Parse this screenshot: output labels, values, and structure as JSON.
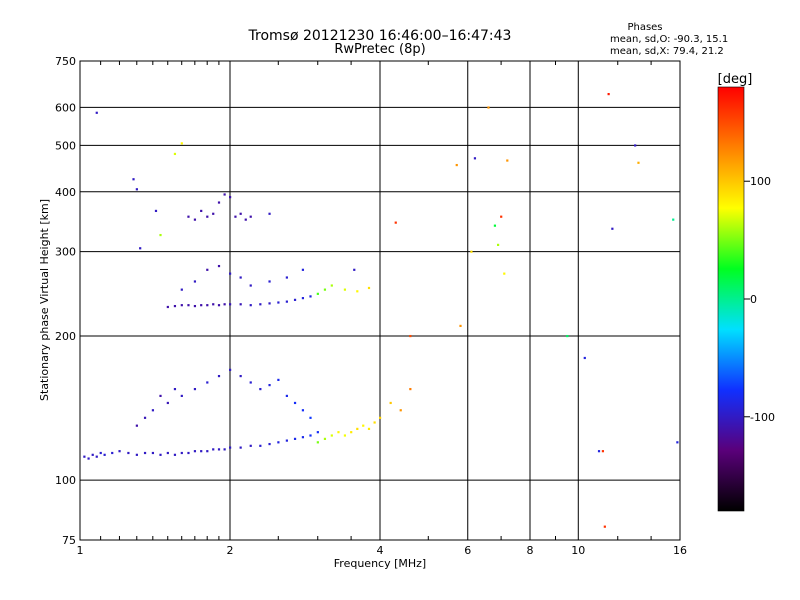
{
  "chart_data": {
    "type": "scatter",
    "title": "Tromsø 20121230 16:46:00–16:47:43",
    "subtitle": "RwPretec (8p)",
    "xlabel": "Frequency [MHz]",
    "ylabel": "Stationary phase Virtual Height [km]",
    "x_scale": "log",
    "y_scale": "log",
    "xlim": [
      1,
      16
    ],
    "ylim": [
      75,
      750
    ],
    "x_ticks": [
      "1",
      "2",
      "4",
      "6",
      "8",
      "10",
      "16"
    ],
    "x_tick_values": [
      1,
      2,
      4,
      6,
      8,
      10,
      16
    ],
    "y_ticks": [
      "75",
      "100",
      "200",
      "300",
      "400",
      "500",
      "600",
      "750"
    ],
    "y_tick_values": [
      75,
      100,
      200,
      300,
      400,
      500,
      600,
      750
    ],
    "x_grid": [
      1,
      2,
      4,
      6,
      8,
      10,
      16
    ],
    "y_grid": [
      100,
      200,
      300,
      400,
      500,
      600
    ],
    "grid": true,
    "stats": {
      "header": "Phases",
      "line_o": "mean, sd,O: -90.3, 15.1",
      "line_x": "mean, sd,X:  79.4, 21.2"
    },
    "colorbar": {
      "label": "[deg]",
      "range": [
        -180,
        180
      ],
      "ticks": [
        "100",
        "0",
        "-100"
      ],
      "tick_values": [
        100,
        0,
        -100
      ],
      "colors": [
        "#000000",
        "#5a007a",
        "#1030ff",
        "#00e0ff",
        "#00ff20",
        "#ffff00",
        "#ff8000",
        "#ff0000"
      ]
    },
    "series": [
      {
        "x": [
          1.02,
          1.04,
          1.06,
          1.08,
          1.1,
          1.12,
          1.16,
          1.2,
          1.25,
          1.3,
          1.35,
          1.4,
          1.45,
          1.5,
          1.55,
          1.6,
          1.65,
          1.7,
          1.75,
          1.8,
          1.85,
          1.9,
          1.95,
          2.0,
          2.1,
          2.2,
          2.3,
          2.4,
          2.5,
          2.6,
          2.7,
          2.8,
          2.9,
          3.0
        ],
        "y": [
          112,
          111,
          113,
          112,
          114,
          113,
          114,
          115,
          114,
          113,
          114,
          114,
          113,
          114,
          113,
          114,
          114,
          115,
          115,
          115,
          116,
          116,
          116,
          117,
          117,
          118,
          118,
          119,
          120,
          121,
          122,
          123,
          124,
          126
        ],
        "phase": [
          -100,
          -100,
          -100,
          -100,
          -95,
          -95,
          -95,
          -100,
          -100,
          -100,
          -100,
          -100,
          -100,
          -100,
          -100,
          -100,
          -100,
          -100,
          -100,
          -100,
          -100,
          -100,
          -100,
          -100,
          -100,
          -100,
          -95,
          -95,
          -90,
          -90,
          -85,
          -85,
          -80,
          -80
        ]
      },
      {
        "x": [
          1.3,
          1.35,
          1.4,
          1.45,
          1.5,
          1.55,
          1.6,
          1.7,
          1.8,
          1.9,
          2.0,
          2.1,
          2.2,
          2.3,
          2.4,
          2.5,
          2.6,
          2.7,
          2.8,
          2.9
        ],
        "y": [
          130,
          135,
          140,
          150,
          145,
          155,
          150,
          155,
          160,
          165,
          170,
          165,
          160,
          155,
          158,
          162,
          150,
          145,
          140,
          135
        ],
        "phase": [
          -110,
          -105,
          -100,
          -110,
          -105,
          -100,
          -100,
          -100,
          -95,
          -100,
          -100,
          -100,
          -95,
          -95,
          -90,
          -85,
          -85,
          -80,
          -80,
          -75
        ]
      },
      {
        "x": [
          3.0,
          3.1,
          3.2,
          3.3,
          3.4,
          3.5,
          3.6,
          3.7,
          3.8,
          3.9,
          4.0,
          4.2,
          4.4,
          4.6
        ],
        "y": [
          120,
          122,
          124,
          126,
          124,
          126,
          128,
          130,
          128,
          132,
          135,
          145,
          140,
          155
        ],
        "phase": [
          50,
          60,
          70,
          80,
          75,
          85,
          90,
          80,
          85,
          90,
          95,
          100,
          120,
          130
        ]
      },
      {
        "x": [
          1.5,
          1.55,
          1.6,
          1.65,
          1.7,
          1.75,
          1.8,
          1.85,
          1.9,
          1.95,
          2.0,
          2.1,
          2.2,
          2.3,
          2.4,
          2.5,
          2.6,
          2.7,
          2.8,
          2.9
        ],
        "y": [
          230,
          231,
          232,
          232,
          231,
          232,
          232,
          233,
          232,
          233,
          233,
          233,
          232,
          233,
          234,
          235,
          236,
          238,
          240,
          242
        ],
        "phase": [
          -110,
          -110,
          -110,
          -110,
          -110,
          -110,
          -110,
          -110,
          -110,
          -110,
          -105,
          -105,
          -100,
          -100,
          -100,
          -95,
          -95,
          -95,
          -90,
          -90
        ]
      },
      {
        "x": [
          1.6,
          1.7,
          1.8,
          1.9,
          2.0,
          2.1,
          2.2,
          2.4,
          2.6,
          2.8
        ],
        "y": [
          250,
          260,
          275,
          280,
          270,
          265,
          255,
          260,
          265,
          275
        ],
        "phase": [
          -100,
          -100,
          -110,
          -110,
          -100,
          -100,
          -100,
          -95,
          -95,
          -90
        ]
      },
      {
        "x": [
          3.0,
          3.1,
          3.2,
          3.4,
          3.6,
          3.8
        ],
        "y": [
          245,
          250,
          255,
          250,
          248,
          252
        ],
        "phase": [
          40,
          50,
          60,
          70,
          80,
          90
        ]
      },
      {
        "x": [
          1.65,
          1.7,
          1.75,
          1.8,
          1.85,
          1.9,
          1.95,
          2.0,
          2.05,
          2.1,
          2.15,
          2.2,
          2.4
        ],
        "y": [
          355,
          350,
          365,
          355,
          360,
          380,
          395,
          390,
          355,
          360,
          350,
          355,
          360
        ],
        "phase": [
          -110,
          -110,
          -110,
          -110,
          -110,
          -110,
          -110,
          -110,
          -110,
          -110,
          -110,
          -110,
          -100
        ]
      },
      {
        "x": [
          1.08,
          1.28,
          1.3,
          1.32,
          1.42,
          1.45,
          1.55,
          1.6,
          3.55,
          4.3,
          4.6,
          5.7,
          6.1,
          6.2,
          6.6,
          6.8,
          6.9,
          7.0,
          7.1,
          7.2,
          11.5,
          11.7,
          13.0,
          13.2,
          15.5,
          15.8,
          9.5,
          10.3,
          11.0,
          11.2,
          11.3,
          5.8
        ],
        "y": [
          585,
          425,
          405,
          305,
          365,
          325,
          480,
          505,
          275,
          345,
          200,
          455,
          300,
          470,
          600,
          340,
          310,
          355,
          270,
          465,
          640,
          335,
          500,
          460,
          350,
          120,
          200,
          180,
          115,
          115,
          80,
          210
        ],
        "phase": [
          -100,
          -100,
          -100,
          -100,
          -100,
          60,
          70,
          80,
          -100,
          160,
          150,
          120,
          90,
          -100,
          120,
          20,
          60,
          160,
          80,
          120,
          170,
          -100,
          -100,
          110,
          0,
          -90,
          10,
          -90,
          -90,
          160,
          160,
          120
        ]
      }
    ]
  }
}
